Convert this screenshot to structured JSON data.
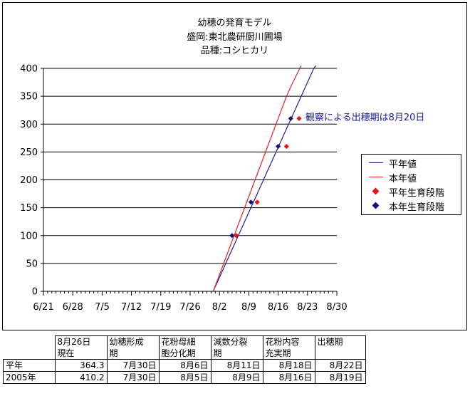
{
  "chart_data": {
    "type": "line",
    "title_lines": [
      "幼穂の発育モデル",
      "盛岡:東北農研厨川圃場",
      "品種:コシヒカリ"
    ],
    "x_tick_labels": [
      "6/21",
      "6/28",
      "7/5",
      "7/12",
      "7/19",
      "7/26",
      "8/2",
      "8/9",
      "8/16",
      "8/23",
      "8/30"
    ],
    "xlim": [
      0,
      70
    ],
    "ylim": [
      0,
      400
    ],
    "y_ticks": [
      0,
      50,
      100,
      150,
      200,
      250,
      300,
      350,
      400
    ],
    "grid": "horizontal",
    "legend_position": "right",
    "x_unit_note": "day offset from 6/21",
    "series": [
      {
        "name": "平年値",
        "kind": "line",
        "color": "#1c1c9c",
        "points": [
          [
            40.5,
            0
          ],
          [
            42,
            25
          ],
          [
            43.5,
            50
          ],
          [
            45,
            75
          ],
          [
            46.5,
            100
          ],
          [
            48,
            125
          ],
          [
            49.5,
            150
          ],
          [
            51,
            175
          ],
          [
            52.5,
            200
          ],
          [
            54,
            225
          ],
          [
            55.5,
            250
          ],
          [
            57,
            275
          ],
          [
            58.5,
            300
          ],
          [
            60,
            325
          ],
          [
            61.5,
            350
          ],
          [
            63,
            375
          ],
          [
            64.5,
            400
          ],
          [
            65,
            405
          ]
        ]
      },
      {
        "name": "本年値",
        "kind": "line",
        "color": "#e02020",
        "points": [
          [
            40.5,
            0
          ],
          [
            41.5,
            20
          ],
          [
            43,
            50
          ],
          [
            44.5,
            80
          ],
          [
            46,
            110
          ],
          [
            47.5,
            140
          ],
          [
            49,
            170
          ],
          [
            50.5,
            200
          ],
          [
            52,
            230
          ],
          [
            53.5,
            260
          ],
          [
            55,
            290
          ],
          [
            56.5,
            320
          ],
          [
            58,
            350
          ],
          [
            59.5,
            375
          ],
          [
            61.5,
            405
          ]
        ]
      },
      {
        "name": "平年生育段階",
        "kind": "marker",
        "color": "#ee1111",
        "points": [
          [
            46,
            100
          ],
          [
            51,
            160
          ],
          [
            58,
            260
          ],
          [
            61,
            310
          ]
        ]
      },
      {
        "name": "本年生育段階",
        "kind": "marker",
        "color": "#141478",
        "points": [
          [
            45,
            100
          ],
          [
            49.5,
            160
          ],
          [
            56,
            260
          ],
          [
            59,
            310
          ]
        ]
      }
    ],
    "annotation": "観察による出穂期は8月20日"
  },
  "table": {
    "header": [
      "",
      "8月26日\n現在",
      "幼穂形成\n期",
      "花粉母細\n胞分化期",
      "減数分裂\n期",
      "花粉内容\n充実期",
      "出穂期"
    ],
    "rows": [
      [
        "平年",
        "364.3",
        "7月30日",
        "8月6日",
        "8月11日",
        "8月18日",
        "8月22日"
      ],
      [
        "2005年",
        "410.2",
        "7月30日",
        "8月5日",
        "8月9日",
        "8月16日",
        "8月19日"
      ]
    ]
  }
}
